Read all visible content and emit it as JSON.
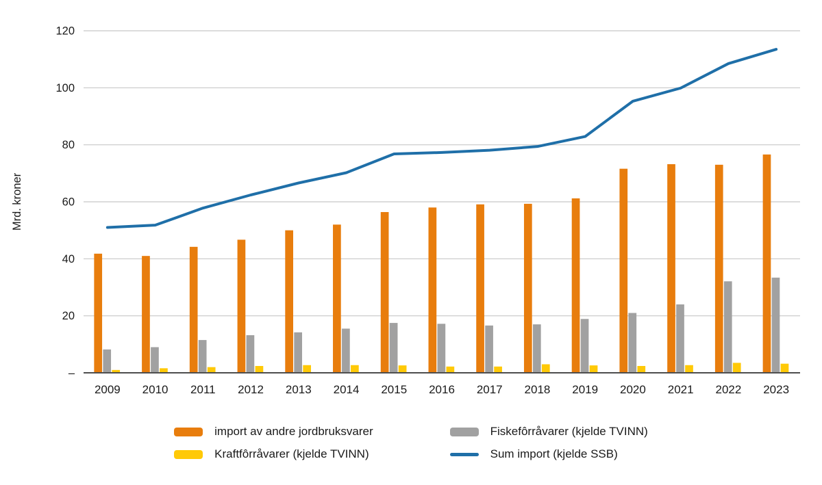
{
  "chart_data": {
    "type": "bar",
    "title": "",
    "ylabel": "Mrd. kroner",
    "ylim": [
      0,
      120
    ],
    "ytick_interval": 20,
    "ytick_labels": [
      "–",
      "20",
      "40",
      "60",
      "80",
      "100",
      "120"
    ],
    "grid": true,
    "legend_position": "bottom",
    "categories": [
      "2009",
      "2010",
      "2011",
      "2012",
      "2013",
      "2014",
      "2015",
      "2016",
      "2017",
      "2018",
      "2019",
      "2020",
      "2021",
      "2022",
      "2023"
    ],
    "series": [
      {
        "name": "import av andre jordbruksvarer",
        "type": "bar",
        "color": "#e87d0d",
        "values": [
          41.8,
          41,
          44.2,
          46.7,
          50,
          52,
          56.4,
          58,
          59.1,
          59.3,
          61.2,
          71.6,
          73.2,
          73,
          76.6
        ]
      },
      {
        "name": "Fiskefôrråvarer (kjelde TVINN)",
        "type": "bar",
        "color": "#a1a1a1",
        "values": [
          8.2,
          9,
          11.5,
          13.2,
          14.2,
          15.5,
          17.5,
          17.2,
          16.6,
          17,
          18.9,
          21,
          24,
          32.1,
          33.4
        ]
      },
      {
        "name": "Kraftfôrråvarer (kjelde TVINN)",
        "type": "bar",
        "color": "#ffc907",
        "values": [
          1,
          1.6,
          2,
          2.4,
          2.7,
          2.7,
          2.6,
          2.2,
          2.2,
          3,
          2.6,
          2.4,
          2.7,
          3.5,
          3.2
        ]
      },
      {
        "name": "Sum import (kjelde SSB)",
        "type": "line",
        "color": "#1f6fa8",
        "values": [
          51,
          51.8,
          57.8,
          62.4,
          66.6,
          70.2,
          76.8,
          77.3,
          78.1,
          79.4,
          82.9,
          95.3,
          99.9,
          108.5,
          113.5
        ]
      }
    ],
    "colors": {
      "gridline": "#c7c7c7",
      "axis_line": "#4d4d4d",
      "text": "#1a1a1a"
    }
  }
}
